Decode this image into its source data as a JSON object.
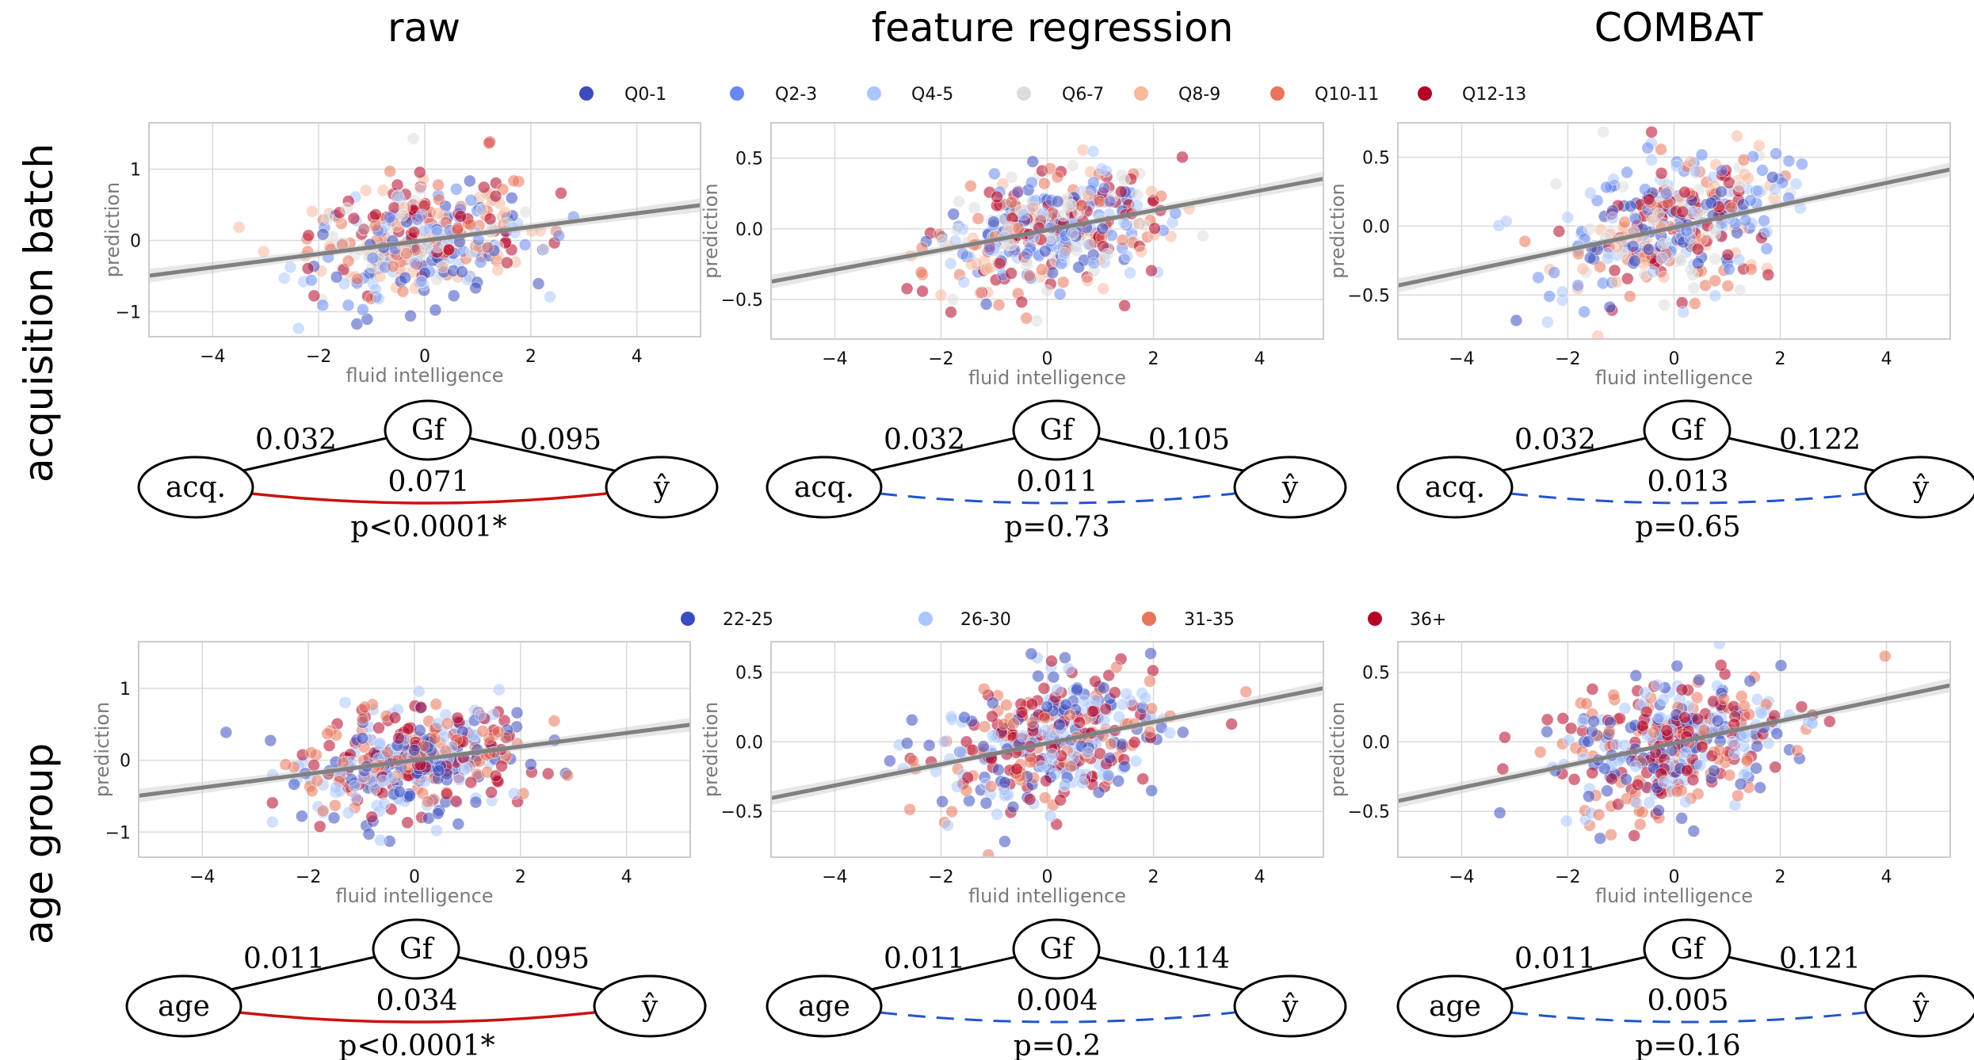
{
  "columns": [
    "raw",
    "feature regression",
    "COMBAT"
  ],
  "rows": [
    "acquisition batch",
    "age group"
  ],
  "legends": {
    "acquisition": [
      "Q0-1",
      "Q2-3",
      "Q4-5",
      "Q6-7",
      "Q8-9",
      "Q10-11",
      "Q12-13"
    ],
    "age": [
      "22-25",
      "26-30",
      "31-35",
      "36+"
    ]
  },
  "colors": {
    "acquisition": [
      "#3b4cc0",
      "#6788ee",
      "#aac7fd",
      "#dddcdc",
      "#f7b89c",
      "#e7745b",
      "#b40426"
    ],
    "age": [
      "#3b4cc0",
      "#aac7fd",
      "#e7745b",
      "#b40426"
    ],
    "regression_line": "#808080",
    "significant_edge": "#cc1111",
    "nonsignificant_edge": "#2255cc"
  },
  "chart_data": [
    {
      "type": "scatter",
      "row": "acquisition batch",
      "col": "raw",
      "xlabel": "fluid intelligence",
      "ylabel": "prediction",
      "xlim": [
        -5.2,
        5.2
      ],
      "ylim": [
        -1.35,
        1.65
      ],
      "xticks": [
        "−4",
        "−2",
        "0",
        "2",
        "4"
      ],
      "yticks": [
        "1",
        "0",
        "−1"
      ],
      "ytick_values": [
        1,
        0,
        -1
      ],
      "fit": {
        "slope": 0.095,
        "intercept": 0.0
      },
      "y_spread": 0.38,
      "y_noise": 0.25,
      "legend": "acquisition"
    },
    {
      "type": "scatter",
      "row": "acquisition batch",
      "col": "feature regression",
      "xlabel": "fluid intelligence",
      "ylabel": "prediction",
      "xlim": [
        -5.2,
        5.2
      ],
      "ylim": [
        -0.78,
        0.75
      ],
      "xticks": [
        "−4",
        "−2",
        "0",
        "2",
        "4"
      ],
      "yticks": [
        "0.5",
        "0.0",
        "−0.5"
      ],
      "ytick_values": [
        0.5,
        0.0,
        -0.5
      ],
      "fit": {
        "slope": 0.07,
        "intercept": -0.01
      },
      "y_spread": 0.22,
      "y_noise": 0.03,
      "legend": "acquisition"
    },
    {
      "type": "scatter",
      "row": "acquisition batch",
      "col": "COMBAT",
      "xlabel": "fluid intelligence",
      "ylabel": "prediction",
      "xlim": [
        -5.2,
        5.2
      ],
      "ylim": [
        -0.82,
        0.75
      ],
      "xticks": [
        "−4",
        "−2",
        "0",
        "2",
        "4"
      ],
      "yticks": [
        "0.5",
        "0.0",
        "−0.5"
      ],
      "ytick_values": [
        0.5,
        0.0,
        -0.5
      ],
      "fit": {
        "slope": 0.081,
        "intercept": -0.01
      },
      "y_spread": 0.24,
      "y_noise": 0.03,
      "legend": "acquisition"
    },
    {
      "type": "scatter",
      "row": "age group",
      "col": "raw",
      "xlabel": "fluid intelligence",
      "ylabel": "prediction",
      "xlim": [
        -5.2,
        5.2
      ],
      "ylim": [
        -1.35,
        1.65
      ],
      "xticks": [
        "−4",
        "−2",
        "0",
        "2",
        "4"
      ],
      "yticks": [
        "1",
        "0",
        "−1"
      ],
      "ytick_values": [
        1,
        0,
        -1
      ],
      "fit": {
        "slope": 0.095,
        "intercept": 0.0
      },
      "y_spread": 0.38,
      "y_noise": 0.15,
      "legend": "age"
    },
    {
      "type": "scatter",
      "row": "age group",
      "col": "feature regression",
      "xlabel": "fluid intelligence",
      "ylabel": "prediction",
      "xlim": [
        -5.2,
        5.2
      ],
      "ylim": [
        -0.83,
        0.72
      ],
      "xticks": [
        "−4",
        "−2",
        "0",
        "2",
        "4"
      ],
      "yticks": [
        "0.5",
        "0.0",
        "−0.5"
      ],
      "ytick_values": [
        0.5,
        0.0,
        -0.5
      ],
      "fit": {
        "slope": 0.076,
        "intercept": -0.01
      },
      "y_spread": 0.24,
      "y_noise": 0.02,
      "legend": "age"
    },
    {
      "type": "scatter",
      "row": "age group",
      "col": "COMBAT",
      "xlabel": "fluid intelligence",
      "ylabel": "prediction",
      "xlim": [
        -5.2,
        5.2
      ],
      "ylim": [
        -0.83,
        0.72
      ],
      "xticks": [
        "−4",
        "−2",
        "0",
        "2",
        "4"
      ],
      "yticks": [
        "0.5",
        "0.0",
        "−0.5"
      ],
      "ytick_values": [
        0.5,
        0.0,
        -0.5
      ],
      "fit": {
        "slope": 0.08,
        "intercept": -0.01
      },
      "y_spread": 0.24,
      "y_noise": 0.02,
      "legend": "age"
    }
  ],
  "diagrams": [
    {
      "node_left": "acq.",
      "node_top": "Gf",
      "node_right": "ŷ",
      "edge_left": "0.032",
      "edge_right": "0.095",
      "edge_bottom": "0.071",
      "p": "p<0.0001*",
      "significant": true
    },
    {
      "node_left": "acq.",
      "node_top": "Gf",
      "node_right": "ŷ",
      "edge_left": "0.032",
      "edge_right": "0.105",
      "edge_bottom": "0.011",
      "p": "p=0.73",
      "significant": false
    },
    {
      "node_left": "acq.",
      "node_top": "Gf",
      "node_right": "ŷ",
      "edge_left": "0.032",
      "edge_right": "0.122",
      "edge_bottom": "0.013",
      "p": "p=0.65",
      "significant": false
    },
    {
      "node_left": "age",
      "node_top": "Gf",
      "node_right": "ŷ",
      "edge_left": "0.011",
      "edge_right": "0.095",
      "edge_bottom": "0.034",
      "p": "p<0.0001*",
      "significant": true
    },
    {
      "node_left": "age",
      "node_top": "Gf",
      "node_right": "ŷ",
      "edge_left": "0.011",
      "edge_right": "0.114",
      "edge_bottom": "0.004",
      "p": "p=0.2",
      "significant": false
    },
    {
      "node_left": "age",
      "node_top": "Gf",
      "node_right": "ŷ",
      "edge_left": "0.011",
      "edge_right": "0.121",
      "edge_bottom": "0.005",
      "p": "p=0.16",
      "significant": false
    }
  ]
}
